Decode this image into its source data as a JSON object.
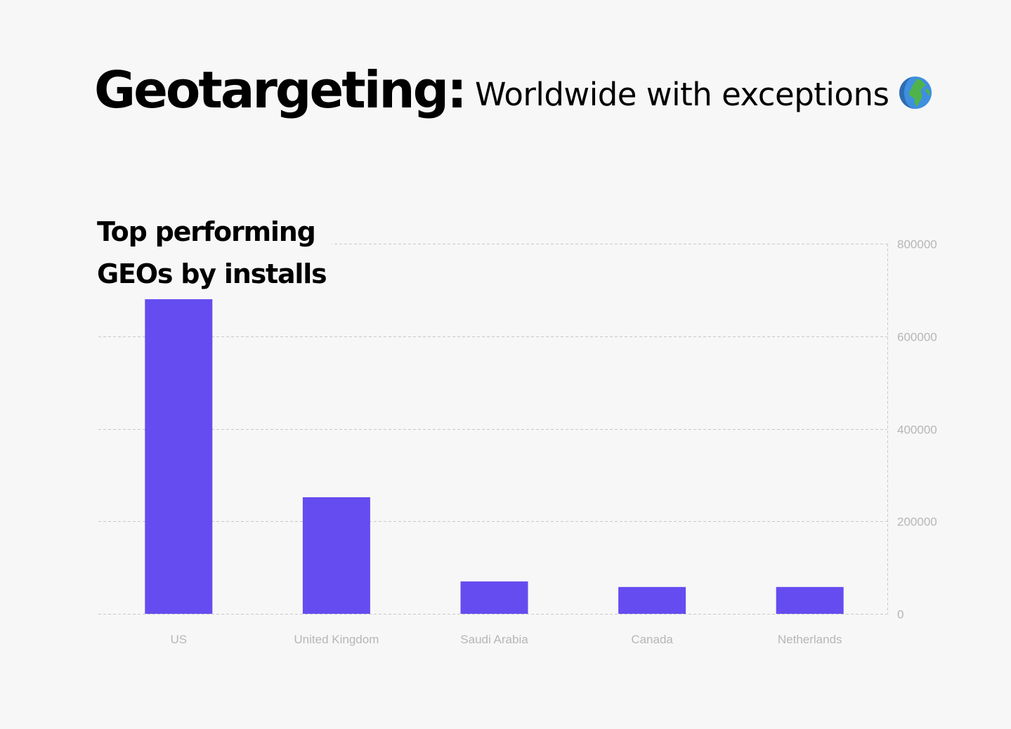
{
  "header": {
    "title_bold": "Geotargeting:",
    "title_rest": "Worldwide with exceptions",
    "emoji_icon": "globe-europe-africa-icon"
  },
  "colors": {
    "bar": "#654cf0",
    "grid": "#c8c8c8",
    "label": "#b6b6b6",
    "background": "#f7f7f7"
  },
  "chart_data": {
    "type": "bar",
    "title": "Top performing GEOs by installs",
    "title_lines": [
      "Top performing",
      "GEOs by installs"
    ],
    "categories": [
      "US",
      "United Kingdom",
      "Saudi Arabia",
      "Canada",
      "Netherlands"
    ],
    "values": [
      680000,
      252000,
      70000,
      58000,
      58000
    ],
    "xlabel": "",
    "ylabel": "",
    "ylim": [
      0,
      800000
    ],
    "yticks": [
      0,
      200000,
      400000,
      600000,
      800000
    ],
    "ytick_labels": [
      "0",
      "200000",
      "400000",
      "600000",
      "800000"
    ],
    "y_axis_position": "right",
    "grid": true,
    "legend": "none"
  }
}
